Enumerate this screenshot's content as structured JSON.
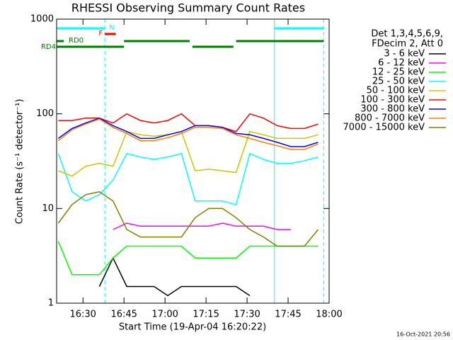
{
  "chart_data": {
    "type": "line",
    "title": "RHESSI Observing Summary Count Rates",
    "x_label": "Start Time (19-Apr-04 16:20:22)",
    "y_label": "Count Rate (s⁻¹ detector⁻¹)",
    "legend_header": [
      "Det 1,3,4,5,6,9,",
      "FDecim 2, Att 0"
    ],
    "footer": "16-Oct-2021 20:56",
    "log_y": true,
    "xlim": [
      "16:20:22",
      "18:00"
    ],
    "xticks": [
      "16:30",
      "16:45",
      "17:00",
      "17:15",
      "17:30",
      "17:45",
      "18:00"
    ],
    "ylim": [
      1,
      1000
    ],
    "yticks": [
      1,
      10,
      100,
      1000
    ],
    "x": [
      "16:21",
      "16:26",
      "16:31",
      "16:36",
      "16:41",
      "16:46",
      "16:51",
      "16:56",
      "17:01",
      "17:06",
      "17:11",
      "17:16",
      "17:21",
      "17:26",
      "17:31",
      "17:36",
      "17:41",
      "17:46",
      "17:51",
      "17:56"
    ],
    "series": [
      {
        "name": "3 - 6 keV",
        "color": "#000000",
        "values": [
          null,
          null,
          null,
          1.5,
          3,
          1.5,
          1.5,
          1.5,
          1.2,
          1.5,
          1.5,
          1.5,
          1.5,
          1.5,
          1.2,
          null,
          null,
          null,
          null,
          null
        ]
      },
      {
        "name": "6 - 12 keV",
        "color": "#ff00ff",
        "values": [
          null,
          null,
          null,
          null,
          6,
          7,
          6.5,
          6.5,
          6.5,
          6.5,
          6.5,
          6.5,
          7,
          6.5,
          6.5,
          6.5,
          6,
          6,
          null,
          null
        ]
      },
      {
        "name": "12 - 25 keV",
        "color": "#00ff00",
        "values": [
          4.5,
          2,
          2,
          2,
          3,
          4,
          4,
          4,
          4,
          4,
          3,
          3,
          3,
          3,
          4,
          4,
          4,
          4,
          4,
          4
        ]
      },
      {
        "name": "25 - 50 keV",
        "color": "#00ffff",
        "values": [
          38,
          15,
          12,
          14,
          20,
          38,
          35,
          33,
          35,
          38,
          12,
          12,
          12,
          11,
          38,
          33,
          30,
          30,
          32,
          35
        ]
      },
      {
        "name": "50 - 100 keV",
        "color": "#c8c800",
        "values": [
          25,
          22,
          28,
          30,
          28,
          65,
          60,
          58,
          60,
          65,
          25,
          26,
          25,
          24,
          65,
          60,
          55,
          55,
          55,
          60
        ]
      },
      {
        "name": "100 - 300 keV",
        "color": "#ff0000",
        "values": [
          85,
          85,
          90,
          90,
          80,
          100,
          85,
          80,
          85,
          100,
          75,
          75,
          72,
          65,
          100,
          90,
          75,
          70,
          70,
          78
        ]
      },
      {
        "name": "300 - 800 keV",
        "color": "#0000ff",
        "values": [
          55,
          70,
          80,
          90,
          75,
          65,
          55,
          55,
          60,
          65,
          75,
          75,
          72,
          62,
          60,
          55,
          50,
          45,
          45,
          50
        ]
      },
      {
        "name": "800 - 7000 keV",
        "color": "#ff8000",
        "values": [
          52,
          68,
          78,
          88,
          72,
          62,
          52,
          52,
          56,
          62,
          72,
          72,
          70,
          60,
          55,
          50,
          46,
          42,
          42,
          48
        ]
      },
      {
        "name": "7000 - 15000 keV",
        "color": "#808000",
        "values": [
          7,
          11,
          14,
          15,
          12,
          6,
          5,
          5,
          5,
          5,
          8,
          10,
          10,
          8,
          6,
          5,
          4,
          4,
          4,
          6
        ]
      }
    ],
    "flags": [
      {
        "name": "N",
        "color": "#00ffff",
        "spans": [
          [
            "16:20:22",
            "16:38"
          ],
          [
            "17:40",
            "17:58"
          ]
        ]
      },
      {
        "name": "F",
        "color": "#ff0000",
        "spans": [
          [
            "16:38",
            "16:42"
          ]
        ]
      },
      {
        "name": "RD0",
        "color": "#008000",
        "spans": [
          [
            "16:20:22",
            "16:23"
          ],
          [
            "16:45",
            "17:09"
          ],
          [
            "17:26",
            "17:58"
          ]
        ]
      },
      {
        "name": "RD4",
        "color": "#008000",
        "spans": [
          [
            "16:20:22",
            "16:45"
          ],
          [
            "17:10",
            "17:25"
          ]
        ]
      }
    ],
    "vlines": [
      {
        "x": "16:20:22",
        "color": "#00ffff",
        "dashed": false
      },
      {
        "x": "16:38",
        "color": "#00ffff",
        "dashed": true
      },
      {
        "x": "17:40",
        "color": "#00ffff",
        "dashed": false
      },
      {
        "x": "17:58",
        "color": "#00ffff",
        "dashed": true
      }
    ]
  }
}
